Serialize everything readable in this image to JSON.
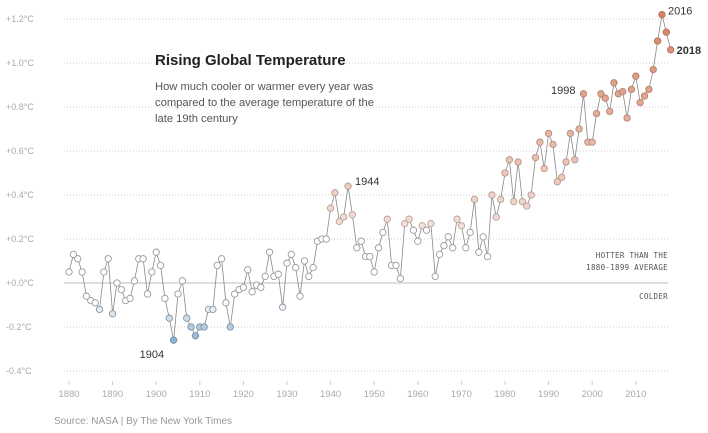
{
  "chart_data": {
    "type": "line",
    "title": "Rising Global Temperature",
    "subtitle": "How much cooler or warmer every year was compared to the average temperature of the late 19th century",
    "xlabel": "",
    "ylabel": "",
    "xlim": [
      1880,
      2018
    ],
    "ylim": [
      -0.4,
      1.2
    ],
    "y_ticks": [
      {
        "value": 1.2,
        "label": "+1.2°C"
      },
      {
        "value": 1.0,
        "label": "+1.0°C"
      },
      {
        "value": 0.8,
        "label": "+0.8°C"
      },
      {
        "value": 0.6,
        "label": "+0.6°C"
      },
      {
        "value": 0.4,
        "label": "+0.4°C"
      },
      {
        "value": 0.2,
        "label": "+0.2°C"
      },
      {
        "value": 0.0,
        "label": "+0.0°C"
      },
      {
        "value": -0.2,
        "label": "-0.2°C"
      },
      {
        "value": -0.4,
        "label": "-0.4°C"
      }
    ],
    "x_ticks": [
      "1880",
      "1890",
      "1900",
      "1910",
      "1920",
      "1930",
      "1940",
      "1950",
      "1960",
      "1970",
      "1980",
      "1990",
      "2000",
      "2010"
    ],
    "grid": true,
    "start_year": 1880,
    "values": [
      0.05,
      0.13,
      0.11,
      0.05,
      -0.06,
      -0.08,
      -0.09,
      -0.12,
      0.05,
      0.11,
      -0.14,
      0.0,
      -0.03,
      -0.08,
      -0.07,
      0.01,
      0.11,
      0.11,
      -0.05,
      0.05,
      0.14,
      0.08,
      -0.07,
      -0.16,
      -0.26,
      -0.05,
      0.01,
      -0.16,
      -0.2,
      -0.24,
      -0.2,
      -0.2,
      -0.12,
      -0.12,
      0.08,
      0.11,
      -0.09,
      -0.2,
      -0.05,
      -0.03,
      -0.02,
      0.06,
      -0.04,
      -0.01,
      -0.02,
      0.03,
      0.14,
      0.03,
      0.04,
      -0.11,
      0.09,
      0.13,
      0.07,
      -0.06,
      0.1,
      0.03,
      0.07,
      0.19,
      0.2,
      0.2,
      0.34,
      0.41,
      0.28,
      0.3,
      0.44,
      0.31,
      0.16,
      0.19,
      0.12,
      0.12,
      0.05,
      0.16,
      0.23,
      0.29,
      0.08,
      0.08,
      0.02,
      0.27,
      0.29,
      0.24,
      0.19,
      0.26,
      0.24,
      0.27,
      0.03,
      0.13,
      0.17,
      0.21,
      0.16,
      0.29,
      0.26,
      0.16,
      0.23,
      0.38,
      0.14,
      0.21,
      0.12,
      0.4,
      0.3,
      0.38,
      0.5,
      0.56,
      0.37,
      0.55,
      0.37,
      0.35,
      0.4,
      0.57,
      0.64,
      0.52,
      0.68,
      0.63,
      0.46,
      0.48,
      0.55,
      0.68,
      0.56,
      0.7,
      0.86,
      0.64,
      0.64,
      0.77,
      0.86,
      0.84,
      0.78,
      0.91,
      0.86,
      0.87,
      0.75,
      0.88,
      0.94,
      0.82,
      0.85,
      0.88,
      0.97,
      1.1,
      1.22,
      1.14,
      1.06
    ],
    "annotations": [
      {
        "year": 1904,
        "label": "1904"
      },
      {
        "year": 1944,
        "label": "1944"
      },
      {
        "year": 1998,
        "label": "1998"
      },
      {
        "year": 2016,
        "label": "2016"
      },
      {
        "year": 2018,
        "label": "2018"
      }
    ],
    "baseline_labels": {
      "above_line1": "HOTTER THAN THE",
      "above_line2": "1880-1899 AVERAGE",
      "below": "COLDER"
    },
    "colors": {
      "cold": "#8fb3d3",
      "hot": "#d48466",
      "neutral": "#ffffff",
      "line": "#888888",
      "grid": "#cccccc"
    }
  },
  "source": "Source: NASA | By The New York Times"
}
